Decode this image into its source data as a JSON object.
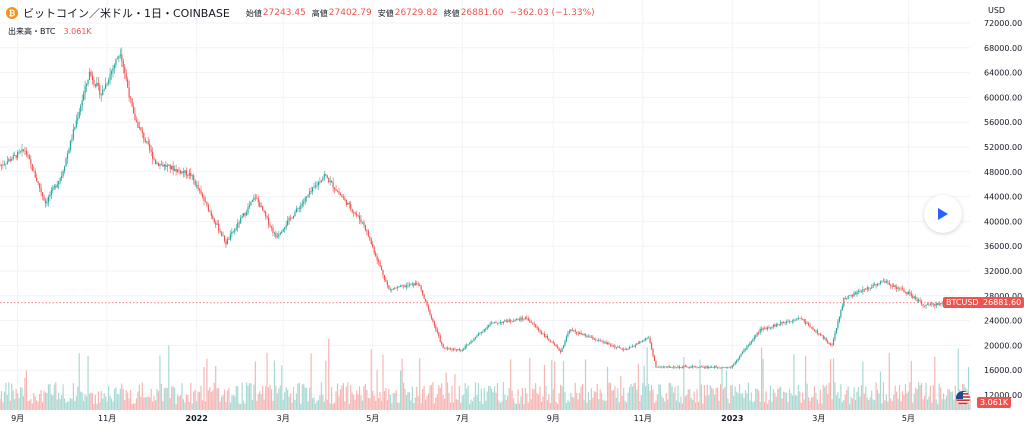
{
  "header": {
    "symbol": "ビットコイン／米ドル・1日・COINBASE",
    "open_label": "始値",
    "open": "27243.45",
    "high_label": "高値",
    "high": "27402.79",
    "low_label": "安値",
    "low": "26729.82",
    "close_label": "終値",
    "close": "26881.60",
    "change": "−362.03 (−1.33%)",
    "coin_glyph": "₿"
  },
  "volume": {
    "label": "出来高・BTC",
    "value": "3.061K"
  },
  "price_badge": {
    "symbol": "BTCUSD",
    "value": "26881.60"
  },
  "volume_badge": {
    "value": "3.061K"
  },
  "colors": {
    "up": "#26a69a",
    "down": "#ef5350",
    "up_volume": "#a8d9d3",
    "down_volume": "#f6b5b3"
  },
  "icons": {
    "coin": "bitcoin-icon",
    "play": "play-icon",
    "flag": "us-flag-icon"
  },
  "chart_data": {
    "type": "candlestick",
    "currency": "USD",
    "y_ticks": [
      "72000.00",
      "68000.00",
      "64000.00",
      "60000.00",
      "56000.00",
      "52000.00",
      "48000.00",
      "44000.00",
      "40000.00",
      "36000.00",
      "32000.00",
      "28000.00",
      "24000.00",
      "20000.00",
      "16000.00",
      "12000.00"
    ],
    "ylim": [
      11000,
      72500
    ],
    "x_ticks": [
      "9月",
      "11月",
      "2022",
      "3月",
      "5月",
      "7月",
      "9月",
      "11月",
      "2023",
      "3月",
      "5月"
    ],
    "x_range": [
      "2021-08-20",
      "2023-06-12"
    ],
    "last_price": 26881.6,
    "price_path": [
      [
        "2021-08-20",
        49000
      ],
      [
        "2021-09-06",
        51500
      ],
      [
        "2021-09-20",
        43000
      ],
      [
        "2021-10-01",
        47500
      ],
      [
        "2021-10-20",
        64000
      ],
      [
        "2021-10-28",
        60500
      ],
      [
        "2021-11-10",
        67500
      ],
      [
        "2021-11-19",
        57000
      ],
      [
        "2021-12-04",
        49500
      ],
      [
        "2021-12-28",
        47500
      ],
      [
        "2022-01-21",
        36500
      ],
      [
        "2022-02-10",
        44000
      ],
      [
        "2022-02-24",
        37500
      ],
      [
        "2022-03-29",
        47500
      ],
      [
        "2022-04-25",
        39500
      ],
      [
        "2022-05-12",
        29000
      ],
      [
        "2022-06-01",
        30000
      ],
      [
        "2022-06-18",
        19500
      ],
      [
        "2022-07-01",
        19300
      ],
      [
        "2022-07-20",
        23500
      ],
      [
        "2022-08-14",
        24400
      ],
      [
        "2022-09-06",
        19000
      ],
      [
        "2022-09-12",
        22500
      ],
      [
        "2022-10-20",
        19200
      ],
      [
        "2022-11-05",
        21300
      ],
      [
        "2022-11-10",
        16500
      ],
      [
        "2022-12-31",
        16500
      ],
      [
        "2023-01-20",
        22500
      ],
      [
        "2023-02-16",
        24500
      ],
      [
        "2023-03-10",
        20000
      ],
      [
        "2023-03-18",
        27500
      ],
      [
        "2023-04-14",
        30400
      ],
      [
        "2023-05-01",
        28400
      ],
      [
        "2023-05-12",
        26400
      ],
      [
        "2023-06-01",
        27000
      ],
      [
        "2023-06-12",
        26881.6
      ]
    ]
  }
}
